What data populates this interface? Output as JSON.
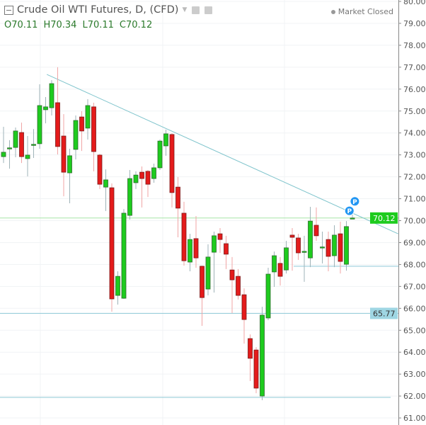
{
  "header": {
    "title": "Crude Oil WTI Futures, D, (CFD)",
    "ohlc": {
      "open": "O70.11",
      "high": "H70.34",
      "low": "L70.11",
      "close": "C70.12"
    },
    "status": "Market Closed"
  },
  "colors": {
    "up": "#1ecb1e",
    "down": "#e41b1b",
    "trendline": "#7fc4cc",
    "hline": "#8cc8d6",
    "last_price": "#1ecb1e"
  },
  "chart_data": {
    "type": "candlestick",
    "title": "Crude Oil WTI Futures, D, (CFD)",
    "ylim": [
      61,
      80
    ],
    "y_ticks": [
      "80.00",
      "79.00",
      "78.00",
      "77.00",
      "76.00",
      "75.00",
      "74.00",
      "73.00",
      "72.00",
      "71.00",
      "70.00",
      "69.00",
      "68.00",
      "67.00",
      "66.00",
      "65.00",
      "64.00",
      "63.00",
      "62.00",
      "61.00"
    ],
    "grid": true,
    "columns": [
      "open",
      "high",
      "low",
      "close"
    ],
    "ohlc": [
      [
        72.92,
        74.28,
        72.63,
        73.12
      ],
      [
        73.3,
        73.67,
        72.37,
        73.32
      ],
      [
        73.34,
        74.25,
        72.89,
        74.09
      ],
      [
        74.02,
        74.47,
        72.63,
        72.92
      ],
      [
        72.83,
        73.86,
        72.02,
        72.99
      ],
      [
        73.46,
        74.18,
        72.86,
        73.48
      ],
      [
        73.51,
        76.22,
        73.28,
        75.25
      ],
      [
        75.06,
        75.64,
        74.44,
        75.19
      ],
      [
        75.15,
        76.41,
        74.8,
        76.25
      ],
      [
        75.38,
        77.0,
        73.02,
        73.38
      ],
      [
        73.86,
        74.86,
        71.11,
        72.21
      ],
      [
        72.18,
        73.28,
        70.79,
        72.96
      ],
      [
        73.25,
        74.8,
        72.79,
        74.57
      ],
      [
        74.73,
        74.99,
        73.18,
        74.09
      ],
      [
        74.22,
        75.54,
        73.7,
        75.25
      ],
      [
        75.19,
        75.38,
        72.25,
        73.15
      ],
      [
        72.99,
        73.05,
        71.44,
        71.66
      ],
      [
        71.53,
        72.34,
        70.44,
        71.86
      ],
      [
        71.5,
        71.7,
        65.85,
        66.43
      ],
      [
        66.59,
        67.69,
        66.17,
        67.46
      ],
      [
        66.46,
        70.53,
        66.43,
        70.34
      ],
      [
        70.24,
        72.31,
        70.05,
        71.92
      ],
      [
        71.73,
        72.25,
        71.44,
        72.08
      ],
      [
        72.21,
        72.47,
        70.6,
        71.92
      ],
      [
        72.25,
        72.31,
        71.08,
        71.66
      ],
      [
        71.92,
        72.6,
        71.73,
        72.41
      ],
      [
        72.41,
        73.7,
        72.31,
        73.63
      ],
      [
        73.41,
        74.15,
        72.96,
        73.96
      ],
      [
        73.93,
        73.99,
        70.6,
        71.28
      ],
      [
        71.53,
        71.99,
        69.24,
        70.57
      ],
      [
        70.34,
        70.86,
        67.95,
        68.17
      ],
      [
        68.11,
        69.4,
        67.69,
        69.14
      ],
      [
        69.18,
        70.21,
        67.85,
        68.3
      ],
      [
        67.92,
        67.95,
        65.2,
        66.49
      ],
      [
        66.88,
        68.92,
        66.59,
        68.34
      ],
      [
        68.56,
        69.5,
        66.72,
        69.31
      ],
      [
        69.4,
        69.66,
        68.53,
        69.14
      ],
      [
        68.95,
        69.31,
        67.79,
        68.47
      ],
      [
        67.75,
        68.34,
        65.78,
        67.3
      ],
      [
        67.46,
        67.79,
        66.4,
        66.59
      ],
      [
        66.62,
        66.91,
        64.39,
        65.49
      ],
      [
        64.62,
        64.81,
        62.68,
        63.72
      ],
      [
        64.1,
        64.23,
        62.13,
        62.36
      ],
      [
        62.0,
        66.07,
        61.81,
        65.69
      ],
      [
        65.56,
        67.85,
        65.46,
        67.56
      ],
      [
        67.66,
        68.59,
        66.98,
        68.4
      ],
      [
        68.05,
        68.34,
        67.04,
        67.46
      ],
      [
        67.75,
        69.08,
        67.59,
        68.76
      ],
      [
        69.34,
        69.66,
        67.72,
        69.24
      ],
      [
        69.21,
        69.4,
        68.21,
        68.53
      ],
      [
        68.58,
        69.31,
        67.21,
        68.6
      ],
      [
        68.3,
        70.63,
        67.88,
        69.98
      ],
      [
        69.79,
        70.6,
        69.08,
        69.31
      ],
      [
        68.78,
        69.5,
        68.05,
        68.8
      ],
      [
        69.14,
        69.5,
        67.69,
        68.37
      ],
      [
        68.4,
        69.79,
        67.88,
        69.34
      ],
      [
        69.4,
        69.95,
        67.59,
        68.14
      ],
      [
        68.01,
        69.98,
        67.72,
        69.73
      ],
      [
        70.11,
        70.34,
        70.11,
        70.12
      ]
    ],
    "last_price": "70.12",
    "horizontal_lines": [
      {
        "price": 65.77,
        "label": "65.77",
        "extent": "full"
      },
      {
        "price": 61.94,
        "extent": "full"
      },
      {
        "price": 67.92,
        "extent": "from-bar-49"
      }
    ],
    "trendline": {
      "from": {
        "bar": 7.2,
        "price": 76.67
      },
      "to": {
        "bar": 65.6,
        "price": 69.4
      }
    },
    "markers": [
      {
        "bar": 57.5,
        "price": 70.45,
        "label": "P"
      },
      {
        "bar": 58.4,
        "price": 70.88,
        "label": "P"
      }
    ]
  }
}
